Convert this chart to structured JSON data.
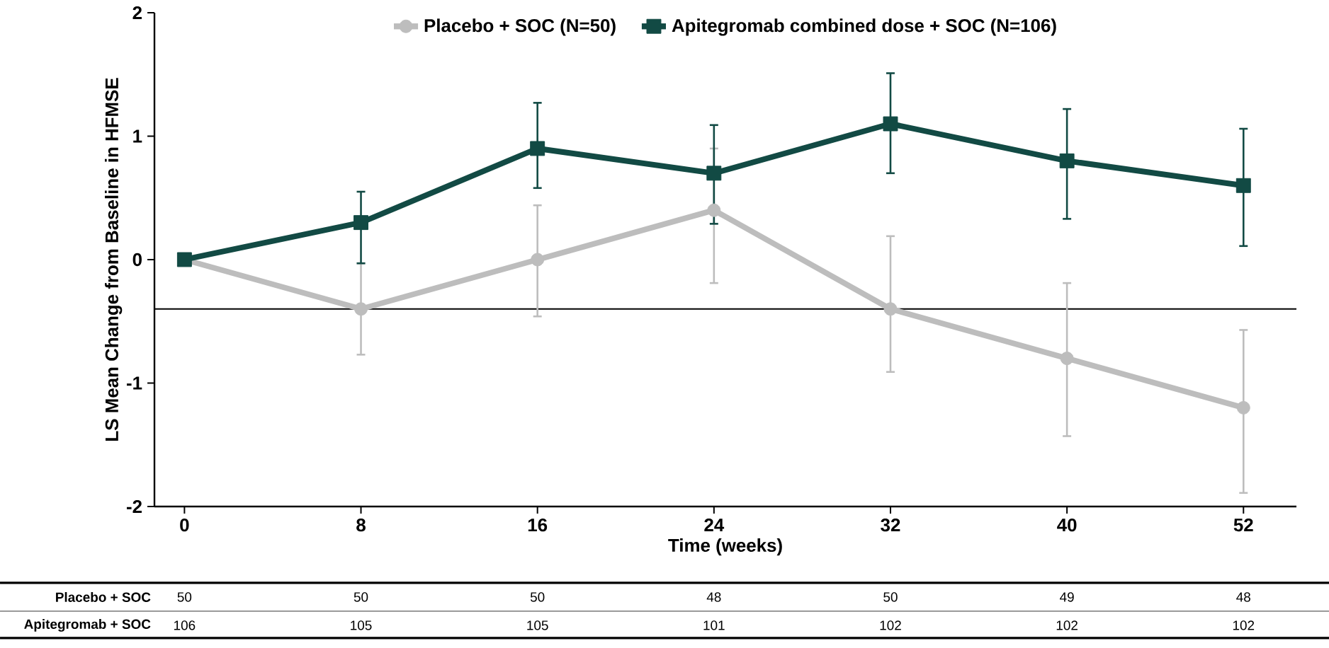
{
  "chart_data": {
    "type": "line",
    "xlabel": "Time (weeks)",
    "ylabel": "LS Mean Change from Baseline in HFMSE",
    "categories": [
      "0",
      "8",
      "16",
      "24",
      "32",
      "40",
      "52"
    ],
    "ylim": [
      -2,
      2
    ],
    "yticks": [
      -2,
      -1,
      0,
      1,
      2
    ],
    "legend": "top",
    "line_style": "solid",
    "grid": false,
    "ref_lines": [
      {
        "axis": "y",
        "value": -0.4,
        "color": "#000000"
      }
    ],
    "series": [
      {
        "name": "Placebo + SOC (N=50)",
        "color": "#bdbdbd",
        "marker": "circle",
        "values": [
          0,
          -0.4,
          0,
          0.4,
          -0.4,
          -0.8,
          -1.2
        ],
        "errors": [
          null,
          [
            -0.77,
            -0.03
          ],
          [
            -0.46,
            0.44
          ],
          [
            -0.19,
            0.9
          ],
          [
            -0.91,
            0.19
          ],
          [
            -1.43,
            -0.19
          ],
          [
            -1.89,
            -0.57
          ]
        ]
      },
      {
        "name": "Apitegromab combined dose + SOC (N=106)",
        "color": "#124a44",
        "marker": "square",
        "values": [
          0,
          0.3,
          0.9,
          0.7,
          1.1,
          0.8,
          0.6
        ],
        "errors": [
          null,
          [
            -0.03,
            0.55
          ],
          [
            0.58,
            1.27
          ],
          [
            0.29,
            1.09
          ],
          [
            0.7,
            1.51
          ],
          [
            0.33,
            1.22
          ],
          [
            0.11,
            1.06
          ]
        ]
      }
    ],
    "annotations": [
      "Placebo + SOC",
      "50",
      "50",
      "50",
      "48",
      "50",
      "49",
      "48",
      "Apitegromab + SOC",
      "106",
      "105",
      "105",
      "101",
      "102",
      "102",
      "102"
    ]
  }
}
